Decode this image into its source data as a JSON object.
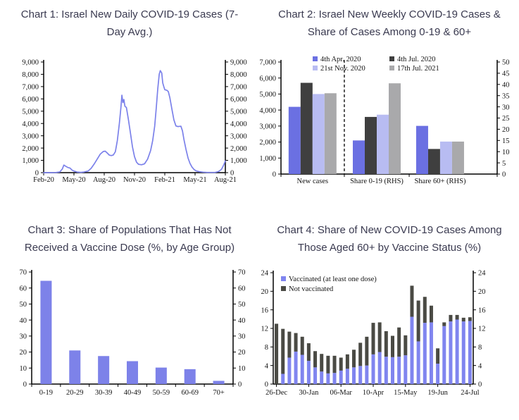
{
  "page": {
    "background": "#ffffff",
    "title_color": "#3a3a50",
    "axis_color": "#000000"
  },
  "charts": [
    {
      "title": "Chart 1: Israel New Daily COVID-19 Cases (7-Day Avg.)",
      "chart_data": {
        "type": "line",
        "series_name": "New daily COVID-19 cases (7-day average)",
        "line_color": "#7b81ea",
        "x_tick_labels": [
          "Feb-20",
          "May-20",
          "Aug-20",
          "Nov-20",
          "Feb-21",
          "May-21",
          "Aug-21"
        ],
        "x_range_months": [
          0,
          18
        ],
        "ylim": [
          0,
          9000
        ],
        "y_tick_labels": [
          "0",
          "1,000",
          "2,000",
          "3,000",
          "4,000",
          "5,000",
          "6,000",
          "7,000",
          "8,000",
          "9,000"
        ],
        "dual_y_axis": true,
        "points": [
          [
            0,
            0
          ],
          [
            0.7,
            0
          ],
          [
            1.2,
            10
          ],
          [
            1.6,
            60
          ],
          [
            1.85,
            300
          ],
          [
            2.0,
            620
          ],
          [
            2.15,
            540
          ],
          [
            2.4,
            420
          ],
          [
            2.6,
            380
          ],
          [
            2.8,
            220
          ],
          [
            3.0,
            130
          ],
          [
            3.3,
            50
          ],
          [
            3.7,
            25
          ],
          [
            4.0,
            50
          ],
          [
            4.4,
            130
          ],
          [
            4.7,
            350
          ],
          [
            5.0,
            700
          ],
          [
            5.3,
            1100
          ],
          [
            5.6,
            1500
          ],
          [
            5.9,
            1720
          ],
          [
            6.1,
            1750
          ],
          [
            6.3,
            1600
          ],
          [
            6.5,
            1430
          ],
          [
            6.7,
            1390
          ],
          [
            6.9,
            1440
          ],
          [
            7.1,
            1700
          ],
          [
            7.3,
            2600
          ],
          [
            7.5,
            4000
          ],
          [
            7.65,
            5300
          ],
          [
            7.75,
            6300
          ],
          [
            7.85,
            5700
          ],
          [
            7.95,
            5950
          ],
          [
            8.05,
            5400
          ],
          [
            8.2,
            5300
          ],
          [
            8.4,
            4300
          ],
          [
            8.6,
            3200
          ],
          [
            8.8,
            2100
          ],
          [
            9.0,
            1300
          ],
          [
            9.2,
            850
          ],
          [
            9.4,
            680
          ],
          [
            9.7,
            640
          ],
          [
            10.0,
            720
          ],
          [
            10.3,
            1100
          ],
          [
            10.6,
            1800
          ],
          [
            10.8,
            2600
          ],
          [
            11.0,
            3800
          ],
          [
            11.15,
            5200
          ],
          [
            11.3,
            6800
          ],
          [
            11.45,
            8000
          ],
          [
            11.55,
            8300
          ],
          [
            11.7,
            8100
          ],
          [
            11.8,
            7300
          ],
          [
            11.9,
            7000
          ],
          [
            12.0,
            6750
          ],
          [
            12.2,
            6700
          ],
          [
            12.35,
            6600
          ],
          [
            12.5,
            6100
          ],
          [
            12.7,
            5200
          ],
          [
            12.9,
            4300
          ],
          [
            13.1,
            3800
          ],
          [
            13.3,
            3750
          ],
          [
            13.6,
            3780
          ],
          [
            13.75,
            3400
          ],
          [
            13.9,
            2700
          ],
          [
            14.1,
            1900
          ],
          [
            14.3,
            1200
          ],
          [
            14.5,
            750
          ],
          [
            14.7,
            450
          ],
          [
            14.9,
            250
          ],
          [
            15.1,
            150
          ],
          [
            15.4,
            80
          ],
          [
            15.8,
            40
          ],
          [
            16.2,
            20
          ],
          [
            16.6,
            15
          ],
          [
            17.0,
            25
          ],
          [
            17.3,
            80
          ],
          [
            17.6,
            250
          ],
          [
            17.8,
            550
          ],
          [
            18.0,
            950
          ]
        ]
      }
    },
    {
      "title": "Chart 2: Israel New Weekly COVID-19 Cases & Share of Cases Among 0-19 & 60+",
      "chart_data": {
        "type": "grouped_bar",
        "categories": [
          "New cases",
          "Share 0-19 (RHS)",
          "Share 60+ (RHS)"
        ],
        "category_scale": [
          "left",
          "right",
          "right"
        ],
        "series": [
          {
            "name": "4th Apr. 2020",
            "color": "#6b70e2",
            "values": [
              4200,
              15.0,
              21.5
            ]
          },
          {
            "name": "4th Jul. 2020",
            "color": "#3f3f3f",
            "values": [
              5700,
              25.5,
              11.2
            ]
          },
          {
            "name": "21st Nov. 2020",
            "color": "#b8bcf2",
            "values": [
              5000,
              26.5,
              14.5
            ]
          },
          {
            "name": "17th Jul. 2021",
            "color": "#a9a9ab",
            "values": [
              5050,
              40.5,
              14.5
            ]
          }
        ],
        "left_ylim": [
          0,
          7000
        ],
        "left_tick_labels": [
          "0",
          "1,000",
          "2,000",
          "3,000",
          "4,000",
          "5,000",
          "6,000",
          "7,000"
        ],
        "right_ylim": [
          0,
          50
        ],
        "right_tick_labels": [
          "0",
          "5",
          "10",
          "15",
          "20",
          "25",
          "30",
          "35",
          "40",
          "45",
          "50"
        ],
        "dashed_separator_fraction": 0.293,
        "legend_position": "top-inside"
      }
    },
    {
      "title": "Chart 3: Share of Populations That Has Not Received a Vaccine Dose (%, by Age Group)",
      "chart_data": {
        "type": "bar",
        "categories": [
          "0-19",
          "20-29",
          "30-39",
          "40-49",
          "50-59",
          "60-69",
          "70+"
        ],
        "values": [
          64.5,
          21,
          17.5,
          14.3,
          10.3,
          9.3,
          2
        ],
        "bar_color": "#7d82e9",
        "ylim": [
          0,
          70
        ],
        "y_tick_labels": [
          "0",
          "10",
          "20",
          "30",
          "40",
          "50",
          "60",
          "70"
        ],
        "dual_y_axis": true
      }
    },
    {
      "title": "Chart 4: Share of New COVID-19 Cases Among Those Aged 60+ by Vaccine Status (%)",
      "chart_data": {
        "type": "stacked_bar",
        "x_tick_labels": [
          "26-Dec",
          "30-Jan",
          "06-Mar",
          "10-Apr",
          "15-May",
          "19-Jun",
          "24-Jul"
        ],
        "x_tick_every": 5,
        "series": [
          {
            "name": "Vaccinated (at least one dose)",
            "color": "#8085ef",
            "values": [
              0,
              2.2,
              5.7,
              7.0,
              6.3,
              5.0,
              3.6,
              2.7,
              2.3,
              2.4,
              2.9,
              3.3,
              3.6,
              3.9,
              4.0,
              6.4,
              6.9,
              5.9,
              5.8,
              5.9,
              6.2,
              14.5,
              9.2,
              13.2,
              13.3,
              4.4,
              12.5,
              13.5,
              13.9,
              13.5,
              13.6
            ]
          },
          {
            "name": "Not vaccinated",
            "color": "#4a4a44",
            "values": [
              13.0,
              9.7,
              5.6,
              4.0,
              3.9,
              3.8,
              3.5,
              3.8,
              3.8,
              3.7,
              2.8,
              3.1,
              3.8,
              5.0,
              6.2,
              6.8,
              6.4,
              5.5,
              4.6,
              6.3,
              4.3,
              6.7,
              8.8,
              5.6,
              3.6,
              3.3,
              0.8,
              1.4,
              1.0,
              0.8,
              0.8
            ]
          }
        ],
        "ylim": [
          0,
          24
        ],
        "y_tick_labels": [
          "0",
          "4",
          "8",
          "12",
          "16",
          "20",
          "24"
        ],
        "dual_y_axis": true,
        "legend_position": "top-left-inside"
      }
    }
  ]
}
